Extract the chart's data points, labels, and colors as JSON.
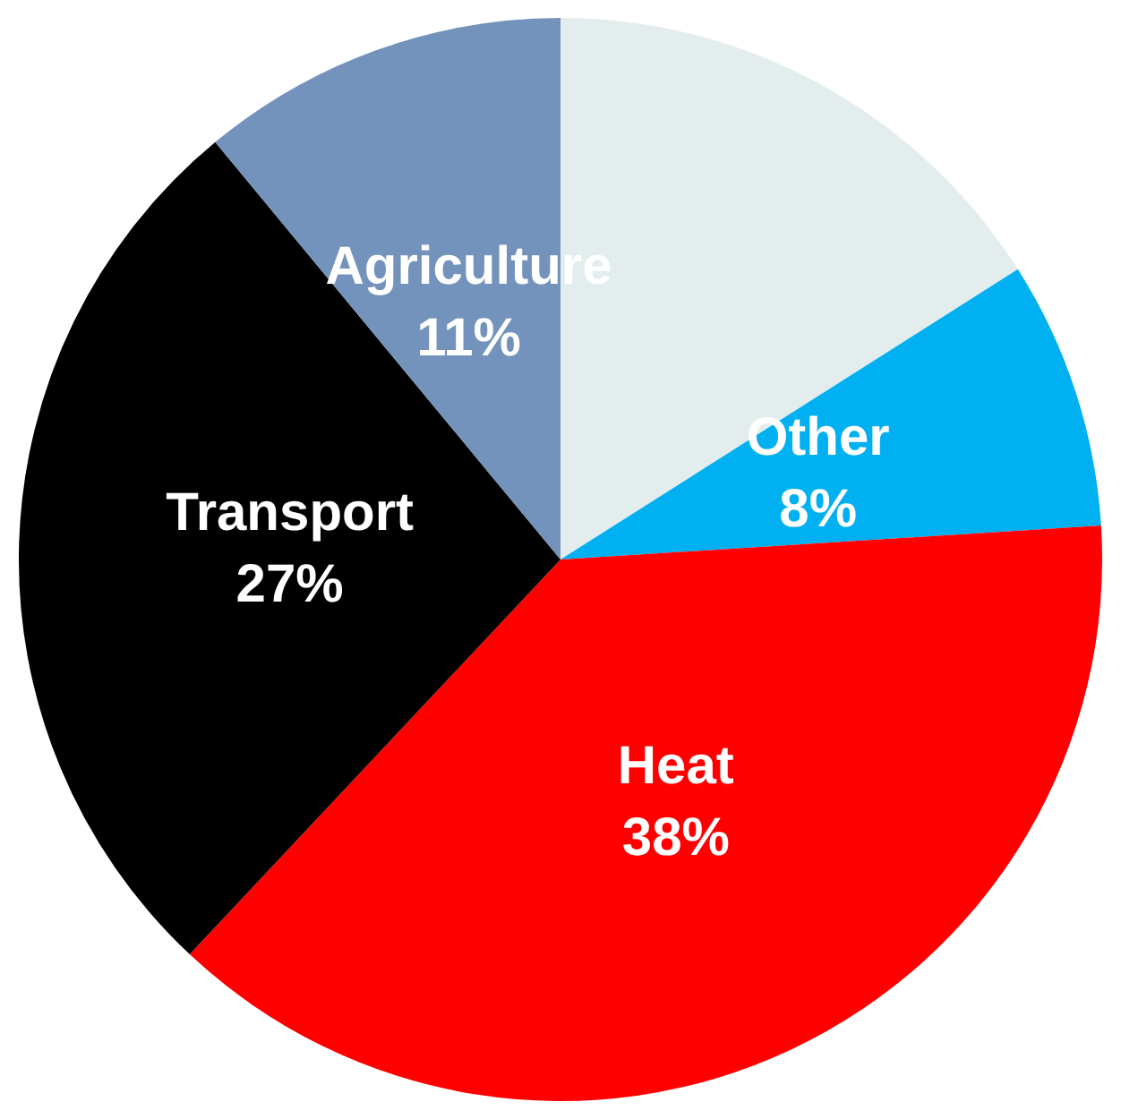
{
  "chart_data": {
    "type": "pie",
    "categories": [
      null,
      "Other",
      "Heat",
      "Transport",
      "Agriculture"
    ],
    "values": [
      16,
      8,
      38,
      27,
      11
    ],
    "colors": [
      "#e4eded",
      "#00b0f0",
      "#ff0000",
      "#000000",
      "#7393bc"
    ],
    "value_labels": [
      null,
      "8%",
      "38%",
      "27%",
      "11%"
    ],
    "legend": false
  }
}
